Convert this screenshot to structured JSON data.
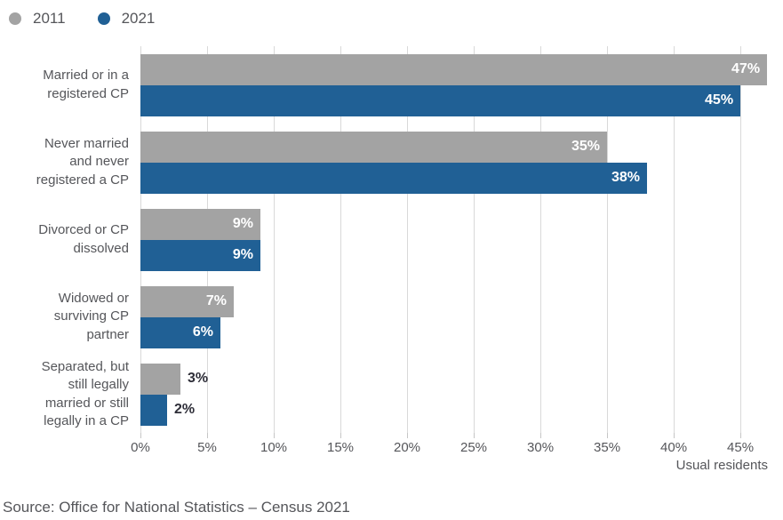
{
  "legend": {
    "position": "top-left"
  },
  "chart_data": {
    "type": "bar",
    "orientation": "horizontal",
    "categories": [
      "Married or in a registered CP",
      "Never married and never registered a CP",
      "Divorced or CP dissolved",
      "Widowed or surviving CP partner",
      "Separated, but still legally married or still legally in a CP"
    ],
    "category_display_lines": [
      [
        "Married or in a",
        "registered CP"
      ],
      [
        "Never married",
        "and never",
        "registered a CP"
      ],
      [
        "Divorced or CP",
        "dissolved"
      ],
      [
        "Widowed or",
        "surviving CP",
        "partner"
      ],
      [
        "Separated, but",
        "still legally",
        "married or still",
        "legally in a CP"
      ]
    ],
    "series": [
      {
        "name": "2011",
        "color": "#a3a3a3",
        "values": [
          47,
          35,
          9,
          7,
          3
        ]
      },
      {
        "name": "2021",
        "color": "#206095",
        "values": [
          45,
          38,
          9,
          6,
          2
        ]
      }
    ],
    "value_suffix": "%",
    "inside_label_min": 5,
    "xlabel": "Usual residents",
    "x_tick_values": [
      0,
      5,
      10,
      15,
      20,
      25,
      30,
      35,
      40,
      45
    ],
    "x_tick_labels": [
      "0%",
      "5%",
      "10%",
      "15%",
      "20%",
      "25%",
      "30%",
      "35%",
      "40%",
      "45%"
    ],
    "xlim": [
      0,
      47.33
    ],
    "grid": "vertical",
    "legend_position": "top-left"
  },
  "colors": {
    "grid": "#d9d9d9",
    "tick": "#c6c6c6",
    "text": "#55565a",
    "value-label-dark": "#2e2e38",
    "value-label-light": "#ffffff"
  },
  "footer": {
    "source": "Source: Office for National Statistics – Census 2021"
  }
}
